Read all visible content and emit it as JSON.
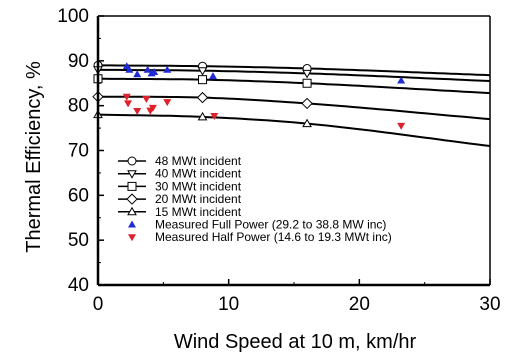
{
  "chart_data": {
    "type": "scatter",
    "title": "",
    "xlabel": "Wind Speed at 10 m, km/hr",
    "ylabel": "Thermal Efficiency, %",
    "xlim": [
      0,
      30
    ],
    "ylim": [
      40,
      100
    ],
    "x_ticks": [
      "0",
      "10",
      "20",
      "30"
    ],
    "y_ticks": [
      "40",
      "50",
      "60",
      "70",
      "80",
      "90",
      "100"
    ],
    "grid": false,
    "legend_position": "lower-left",
    "curves": [
      {
        "name": "48 MWt incident",
        "marker": "circle",
        "x": [
          0,
          8,
          16,
          30
        ],
        "y": [
          89.0,
          88.8,
          88.3,
          86.8
        ]
      },
      {
        "name": "40 MWt incident",
        "marker": "triangle-down",
        "x": [
          0,
          8,
          16,
          30
        ],
        "y": [
          88.0,
          87.8,
          87.2,
          85.5
        ]
      },
      {
        "name": "30 MWt incident",
        "marker": "square",
        "x": [
          0,
          8,
          16,
          30
        ],
        "y": [
          86.0,
          85.8,
          85.0,
          82.8
        ]
      },
      {
        "name": "20 MWt incident",
        "marker": "diamond",
        "x": [
          0,
          8,
          16,
          30
        ],
        "y": [
          82.0,
          81.8,
          80.5,
          77.0
        ]
      },
      {
        "name": "15 MWt incident",
        "marker": "triangle-up",
        "x": [
          0,
          8,
          16,
          30
        ],
        "y": [
          78.0,
          77.5,
          76.0,
          71.0
        ]
      }
    ],
    "measured": [
      {
        "name": "Measured Full Power (29.2 to 38.8 MW inc)",
        "color": "#1f2bd6",
        "marker": "triangle-up-filled",
        "points": [
          [
            2.2,
            88.8
          ],
          [
            2.4,
            88.0
          ],
          [
            3.0,
            87.0
          ],
          [
            3.8,
            88.0
          ],
          [
            4.1,
            87.2
          ],
          [
            4.3,
            87.5
          ],
          [
            5.3,
            88.0
          ],
          [
            8.8,
            86.6
          ],
          [
            23.2,
            85.6
          ]
        ]
      },
      {
        "name": "Measured Half Power (14.6 to 19.3 MWt inc)",
        "color": "#e0202a",
        "marker": "triangle-down-filled",
        "points": [
          [
            2.2,
            82.0
          ],
          [
            2.3,
            80.5
          ],
          [
            3.0,
            78.8
          ],
          [
            3.7,
            81.5
          ],
          [
            4.0,
            78.9
          ],
          [
            4.2,
            79.5
          ],
          [
            5.3,
            80.8
          ],
          [
            8.9,
            77.7
          ],
          [
            23.2,
            75.5
          ]
        ]
      }
    ]
  }
}
